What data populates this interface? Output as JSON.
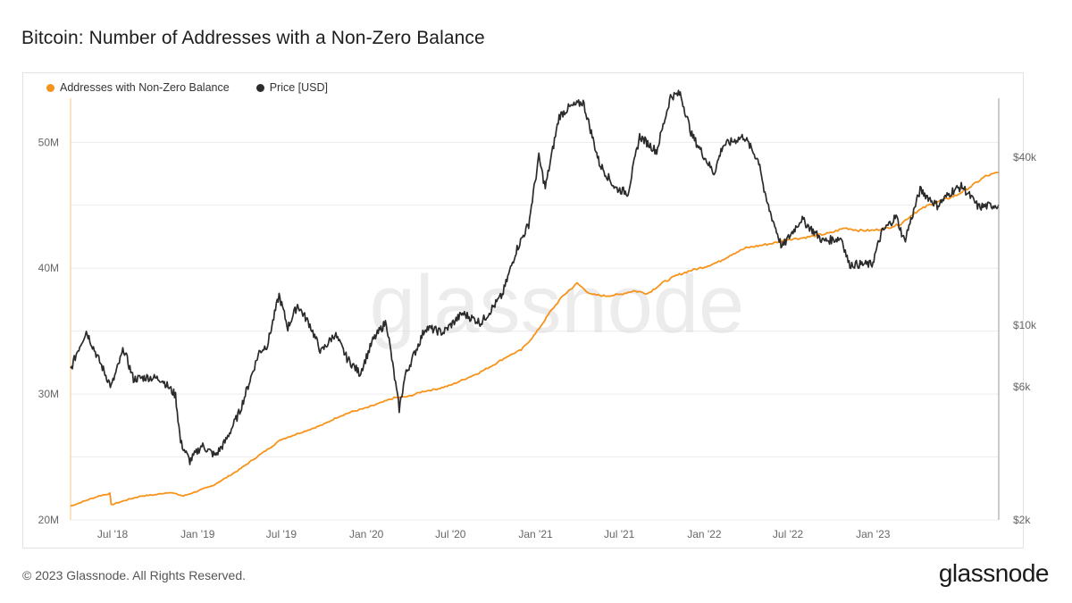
{
  "title": "Bitcoin: Number of Addresses with a Non-Zero Balance",
  "footer": {
    "copyright": "© 2023 Glassnode. All Rights Reserved.",
    "logo": "glassnode"
  },
  "watermark": "glassnode",
  "colors": {
    "addresses": "#f7931a",
    "price": "#2b2b2b",
    "grid": "#ececec",
    "axis_text": "#666666"
  },
  "chart_data": {
    "type": "line",
    "legend_placement": "top-left",
    "grid": true,
    "x_ticks": [
      "Jul '18",
      "Jan '19",
      "Jul '19",
      "Jan '20",
      "Jul '20",
      "Jan '21",
      "Jul '21",
      "Jan '22",
      "Jul '22",
      "Jan '23"
    ],
    "x_range": [
      "2018-04-01",
      "2023-09-30"
    ],
    "y_left": {
      "ticks": [
        "20M",
        "30M",
        "40M",
        "50M"
      ],
      "ylim": [
        20000000,
        53500000
      ]
    },
    "y_right": {
      "scale": "log",
      "ticks": [
        "$2k",
        "$6k",
        "$10k",
        "$40k"
      ],
      "ylim": [
        2000,
        65000
      ]
    },
    "series": [
      {
        "name": "Addresses with Non-Zero Balance",
        "axis": "left",
        "points": [
          [
            "2018-04-01",
            21100000.0
          ],
          [
            "2018-05-01",
            21500000.0
          ],
          [
            "2018-06-01",
            21900000.0
          ],
          [
            "2018-06-25",
            22100000.0
          ],
          [
            "2018-06-28",
            21200000.0
          ],
          [
            "2018-08-01",
            21600000.0
          ],
          [
            "2018-09-01",
            21900000.0
          ],
          [
            "2018-10-01",
            22000000.0
          ],
          [
            "2018-11-01",
            22200000.0
          ],
          [
            "2018-12-01",
            21900000.0
          ],
          [
            "2019-01-01",
            22300000.0
          ],
          [
            "2019-02-01",
            22700000.0
          ],
          [
            "2019-03-01",
            23300000.0
          ],
          [
            "2019-04-01",
            24000000.0
          ],
          [
            "2019-05-01",
            24800000.0
          ],
          [
            "2019-06-01",
            25600000.0
          ],
          [
            "2019-07-01",
            26400000.0
          ],
          [
            "2019-08-01",
            26800000.0
          ],
          [
            "2019-09-01",
            27200000.0
          ],
          [
            "2019-10-01",
            27600000.0
          ],
          [
            "2019-11-01",
            28200000.0
          ],
          [
            "2019-12-01",
            28600000.0
          ],
          [
            "2020-01-01",
            28900000.0
          ],
          [
            "2020-02-01",
            29300000.0
          ],
          [
            "2020-03-01",
            29700000.0
          ],
          [
            "2020-04-01",
            29800000.0
          ],
          [
            "2020-05-01",
            30200000.0
          ],
          [
            "2020-06-01",
            30400000.0
          ],
          [
            "2020-07-01",
            30700000.0
          ],
          [
            "2020-08-01",
            31200000.0
          ],
          [
            "2020-09-01",
            31700000.0
          ],
          [
            "2020-10-01",
            32300000.0
          ],
          [
            "2020-11-01",
            33000000.0
          ],
          [
            "2020-12-01",
            33500000.0
          ],
          [
            "2021-01-01",
            34800000.0
          ],
          [
            "2021-02-01",
            36500000.0
          ],
          [
            "2021-03-01",
            37800000.0
          ],
          [
            "2021-04-01",
            38800000.0
          ],
          [
            "2021-05-01",
            37900000.0
          ],
          [
            "2021-06-01",
            37800000.0
          ],
          [
            "2021-07-01",
            37900000.0
          ],
          [
            "2021-08-01",
            38200000.0
          ],
          [
            "2021-09-01",
            38000000.0
          ],
          [
            "2021-10-01",
            38800000.0
          ],
          [
            "2021-11-01",
            39400000.0
          ],
          [
            "2021-12-01",
            39800000.0
          ],
          [
            "2022-01-01",
            40100000.0
          ],
          [
            "2022-02-01",
            40500000.0
          ],
          [
            "2022-03-01",
            41100000.0
          ],
          [
            "2022-04-01",
            41600000.0
          ],
          [
            "2022-05-01",
            41800000.0
          ],
          [
            "2022-06-01",
            42000000.0
          ],
          [
            "2022-07-01",
            42300000.0
          ],
          [
            "2022-08-01",
            42400000.0
          ],
          [
            "2022-09-01",
            42600000.0
          ],
          [
            "2022-10-01",
            42800000.0
          ],
          [
            "2022-11-01",
            43200000.0
          ],
          [
            "2022-12-01",
            43000000.0
          ],
          [
            "2023-01-01",
            43000000.0
          ],
          [
            "2023-02-01",
            43200000.0
          ],
          [
            "2023-03-01",
            43500000.0
          ],
          [
            "2023-04-01",
            44400000.0
          ],
          [
            "2023-05-01",
            45000000.0
          ],
          [
            "2023-06-01",
            45400000.0
          ],
          [
            "2023-07-01",
            45800000.0
          ],
          [
            "2023-08-01",
            46500000.0
          ],
          [
            "2023-09-01",
            47300000.0
          ],
          [
            "2023-09-30",
            47600000.0
          ]
        ]
      },
      {
        "name": "Price [USD]",
        "axis": "right",
        "points": [
          [
            "2018-04-01",
            6900
          ],
          [
            "2018-04-15",
            8000
          ],
          [
            "2018-05-05",
            9500
          ],
          [
            "2018-06-01",
            7500
          ],
          [
            "2018-06-28",
            6000
          ],
          [
            "2018-07-25",
            8200
          ],
          [
            "2018-08-15",
            6400
          ],
          [
            "2018-09-15",
            6500
          ],
          [
            "2018-10-15",
            6400
          ],
          [
            "2018-11-14",
            5600
          ],
          [
            "2018-11-25",
            3800
          ],
          [
            "2018-12-15",
            3250
          ],
          [
            "2019-01-10",
            3700
          ],
          [
            "2019-02-08",
            3400
          ],
          [
            "2019-03-01",
            3800
          ],
          [
            "2019-04-02",
            4900
          ],
          [
            "2019-05-14",
            8000
          ],
          [
            "2019-06-01",
            8500
          ],
          [
            "2019-06-26",
            12800
          ],
          [
            "2019-07-15",
            9800
          ],
          [
            "2019-08-05",
            11800
          ],
          [
            "2019-09-01",
            10000
          ],
          [
            "2019-09-25",
            8000
          ],
          [
            "2019-10-25",
            9300
          ],
          [
            "2019-11-20",
            7600
          ],
          [
            "2019-12-18",
            6700
          ],
          [
            "2020-01-15",
            8800
          ],
          [
            "2020-02-13",
            10300
          ],
          [
            "2020-03-12",
            5000
          ],
          [
            "2020-03-25",
            6600
          ],
          [
            "2020-05-08",
            9800
          ],
          [
            "2020-06-15",
            9400
          ],
          [
            "2020-07-27",
            11000
          ],
          [
            "2020-09-05",
            10200
          ],
          [
            "2020-10-21",
            12800
          ],
          [
            "2020-11-20",
            18500
          ],
          [
            "2020-12-17",
            23000
          ],
          [
            "2021-01-08",
            40000
          ],
          [
            "2021-01-22",
            31000
          ],
          [
            "2021-02-21",
            56000
          ],
          [
            "2021-03-13",
            60000
          ],
          [
            "2021-04-14",
            63000
          ],
          [
            "2021-05-19",
            38000
          ],
          [
            "2021-06-22",
            31000
          ],
          [
            "2021-07-20",
            29800
          ],
          [
            "2021-08-14",
            47500
          ],
          [
            "2021-09-20",
            42000
          ],
          [
            "2021-10-20",
            66000
          ],
          [
            "2021-11-10",
            67500
          ],
          [
            "2021-12-05",
            48000
          ],
          [
            "2022-01-22",
            35000
          ],
          [
            "2022-02-10",
            44000
          ],
          [
            "2022-03-28",
            47500
          ],
          [
            "2022-05-01",
            38000
          ],
          [
            "2022-05-12",
            29000
          ],
          [
            "2022-06-18",
            19000
          ],
          [
            "2022-07-30",
            24000
          ],
          [
            "2022-09-15",
            20000
          ],
          [
            "2022-10-25",
            20500
          ],
          [
            "2022-11-10",
            16500
          ],
          [
            "2022-12-30",
            16500
          ],
          [
            "2023-01-20",
            21500
          ],
          [
            "2023-02-20",
            24500
          ],
          [
            "2023-03-10",
            20000
          ],
          [
            "2023-04-13",
            30500
          ],
          [
            "2023-05-20",
            26800
          ],
          [
            "2023-06-22",
            30300
          ],
          [
            "2023-07-13",
            31400
          ],
          [
            "2023-08-17",
            26500
          ],
          [
            "2023-09-30",
            27000
          ]
        ]
      }
    ]
  }
}
